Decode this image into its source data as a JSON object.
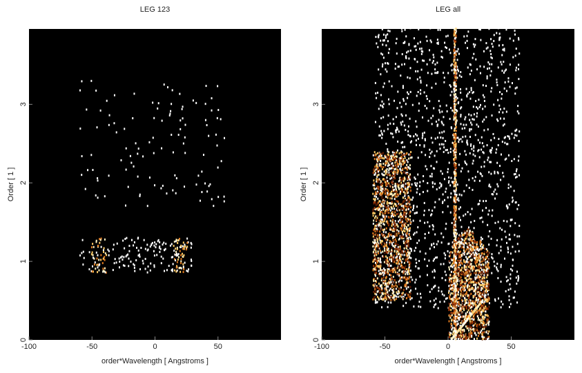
{
  "chart_data": [
    {
      "type": "heatmap",
      "title": "LEG 123",
      "x_label": "order*Wavelength [ Angstroms ]",
      "y_label": "Order [ 1 ]",
      "xlim": [
        -100,
        100
      ],
      "ylim": [
        0,
        3.96
      ],
      "xticks": [
        -100,
        -50,
        0,
        50
      ],
      "yticks": [
        0,
        1,
        2,
        3
      ]
    },
    {
      "type": "heatmap",
      "title": "LEG all",
      "x_label": "order*Wavelength [ Angstroms ]",
      "y_label": "Order [ 1 ]",
      "xlim": [
        -100,
        100
      ],
      "ylim": [
        0,
        3.96
      ],
      "xticks": [
        -100,
        -50,
        0,
        50
      ],
      "yticks": [
        0,
        1,
        2,
        3
      ]
    }
  ]
}
